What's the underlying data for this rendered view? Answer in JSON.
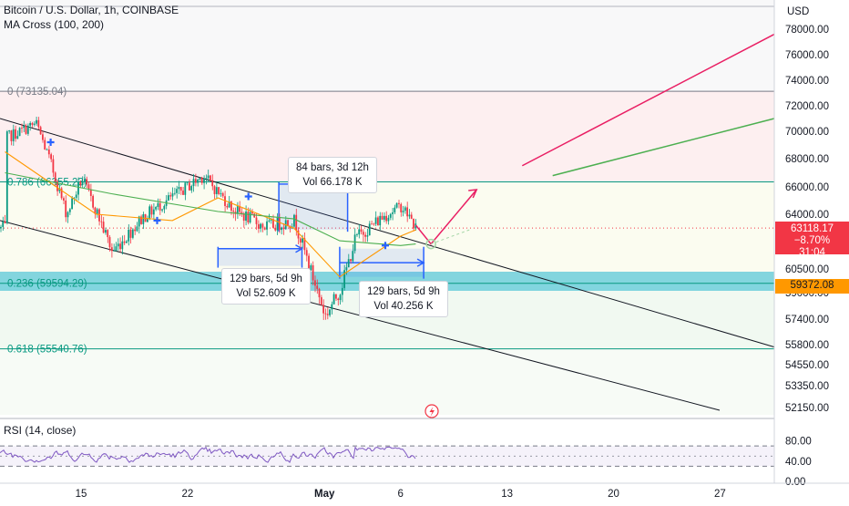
{
  "header": {
    "title": "Bitcoin / U.S. Dollar, 1h, COINBASE",
    "indicator": "MA Cross (100, 200)",
    "currency": "USD",
    "rsi_title": "RSI (14, close)"
  },
  "fib_levels": [
    {
      "label": "0 (73135.04)",
      "price": 73135.04,
      "color": "#787b86"
    },
    {
      "label": "0.786 (66355.23)",
      "price": 66355.23,
      "color": "#089981"
    },
    {
      "label": "0.236 (59594.29)",
      "price": 59594.29,
      "color": "#089981"
    },
    {
      "label": "0.618 (55540.76)",
      "price": 55540.76,
      "color": "#089981"
    }
  ],
  "measure_boxes": [
    {
      "line1": "84 bars, 3d 12h",
      "line2": "Vol 66.178 K"
    },
    {
      "line1": "129 bars, 5d 9h",
      "line2": "Vol 52.609 K"
    },
    {
      "line1": "129 bars, 5d 9h",
      "line2": "Vol 40.256 K"
    }
  ],
  "current_price": {
    "value": "63118.17",
    "change": "−8.70%",
    "countdown": "31:04",
    "color": "#f23645"
  },
  "level_tag": {
    "value": "59372.08",
    "color": "#ff9800"
  },
  "colors": {
    "up": "#089981",
    "down": "#f23645",
    "ma_fast": "#ff9800",
    "ma_slow": "#4caf50",
    "arrow": "#e91e63",
    "measure": "#2962ff",
    "zone": "#5bc8d8"
  },
  "chart_data": {
    "type": "candlestick",
    "title": "Bitcoin / U.S. Dollar, 1h, COINBASE",
    "x_axis": {
      "type": "date",
      "tick_labels": [
        "15",
        "22",
        "May",
        "6",
        "13",
        "20",
        "27"
      ],
      "tick_dates": [
        "2024-04-15",
        "2024-04-22",
        "2024-05-01",
        "2024-05-06",
        "2024-05-13",
        "2024-05-20",
        "2024-05-27"
      ]
    },
    "y_axis": {
      "label": "USD",
      "ticks": [
        78000,
        76000,
        74000,
        72000,
        70000,
        68000,
        66000,
        64000,
        60500,
        59000,
        57400,
        55800,
        54550,
        53350,
        52150
      ],
      "tick_labels": [
        "78000.00",
        "76000.00",
        "74000.00",
        "72000.00",
        "70000.00",
        "68000.00",
        "66000.00",
        "64000.00",
        "60500.00",
        "59000.00",
        "57400.00",
        "55800.00",
        "54550.00",
        "53350.00",
        "52150.00"
      ]
    },
    "price_anchors": [
      {
        "date": "2024-04-10",
        "price": 69500
      },
      {
        "date": "2024-04-12",
        "price": 70600
      },
      {
        "date": "2024-04-13",
        "price": 67500
      },
      {
        "date": "2024-04-14",
        "price": 64000
      },
      {
        "date": "2024-04-15",
        "price": 66600
      },
      {
        "date": "2024-04-17",
        "price": 61600
      },
      {
        "date": "2024-04-19",
        "price": 63800
      },
      {
        "date": "2024-04-21",
        "price": 65300
      },
      {
        "date": "2024-04-23",
        "price": 66800
      },
      {
        "date": "2024-04-25",
        "price": 64300
      },
      {
        "date": "2024-04-27",
        "price": 63200
      },
      {
        "date": "2024-04-29",
        "price": 63600
      },
      {
        "date": "2024-04-30",
        "price": 60500
      },
      {
        "date": "2024-05-01",
        "price": 57600
      },
      {
        "date": "2024-05-02",
        "price": 59200
      },
      {
        "date": "2024-05-03",
        "price": 62500
      },
      {
        "date": "2024-05-05",
        "price": 64000
      },
      {
        "date": "2024-05-06",
        "price": 64600
      },
      {
        "date": "2024-05-07",
        "price": 63100
      }
    ],
    "moving_averages": [
      {
        "name": "MA 100",
        "values": [
          {
            "date": "2024-04-10",
            "price": 68500
          },
          {
            "date": "2024-04-16",
            "price": 64000
          },
          {
            "date": "2024-04-21",
            "price": 63600
          },
          {
            "date": "2024-04-24",
            "price": 65200
          },
          {
            "date": "2024-04-29",
            "price": 63100
          },
          {
            "date": "2024-05-02",
            "price": 60000
          },
          {
            "date": "2024-05-06",
            "price": 62600
          },
          {
            "date": "2024-05-07",
            "price": 63000
          }
        ]
      },
      {
        "name": "MA 200",
        "values": [
          {
            "date": "2024-04-10",
            "price": 67000
          },
          {
            "date": "2024-04-17",
            "price": 65500
          },
          {
            "date": "2024-04-24",
            "price": 64200
          },
          {
            "date": "2024-04-29",
            "price": 63700
          },
          {
            "date": "2024-05-02",
            "price": 62300
          },
          {
            "date": "2024-05-06",
            "price": 62000
          },
          {
            "date": "2024-05-07",
            "price": 62100
          }
        ]
      }
    ],
    "rsi": {
      "ylim": [
        0,
        100
      ],
      "tick_labels": [
        "80.00",
        "40.00",
        "0.00"
      ],
      "upper": 70,
      "lower": 30
    }
  }
}
